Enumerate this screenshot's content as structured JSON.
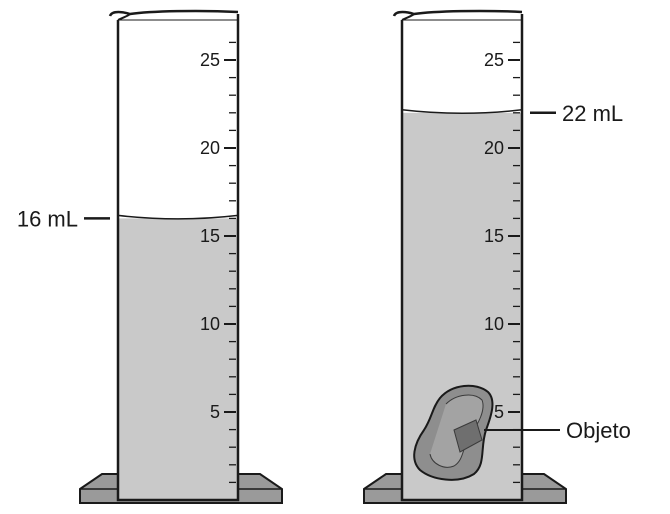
{
  "cylinders": [
    {
      "id": "left",
      "scale_labels": [
        "25",
        "20",
        "15",
        "10",
        "5"
      ],
      "scale_values": [
        25,
        20,
        15,
        10,
        5
      ],
      "liquid_level_ml": 16,
      "callout": "16 mL",
      "has_object": false
    },
    {
      "id": "right",
      "scale_labels": [
        "25",
        "20",
        "15",
        "10",
        "5"
      ],
      "scale_values": [
        25,
        20,
        15,
        10,
        5
      ],
      "liquid_level_ml": 22,
      "callout": "22 mL",
      "has_object": true,
      "object_label": "Objeto"
    }
  ],
  "colors": {
    "liquid": "#c9c9c9",
    "cylinder_outline": "#1a1a1a",
    "base": "#9a9a9a",
    "object": "#8e8e8e"
  }
}
